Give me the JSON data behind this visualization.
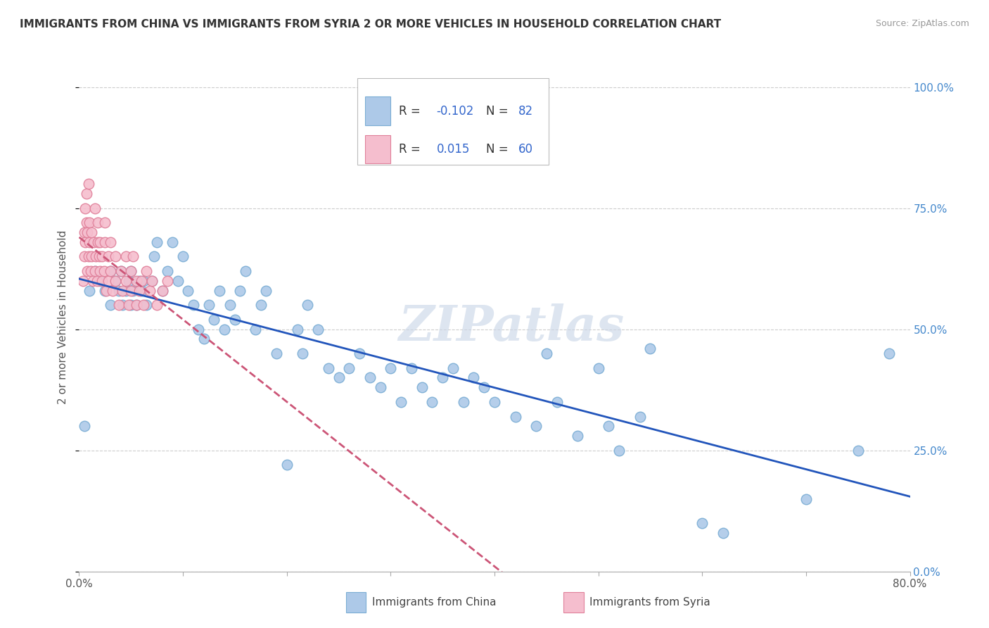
{
  "title": "IMMIGRANTS FROM CHINA VS IMMIGRANTS FROM SYRIA 2 OR MORE VEHICLES IN HOUSEHOLD CORRELATION CHART",
  "source": "Source: ZipAtlas.com",
  "ylabel": "2 or more Vehicles in Household",
  "china_R": -0.102,
  "china_N": 82,
  "syria_R": 0.015,
  "syria_N": 60,
  "china_color": "#adc9e8",
  "china_edge": "#7aadd4",
  "syria_color": "#f5bece",
  "syria_edge": "#e0809a",
  "china_line_color": "#2255bb",
  "syria_line_color": "#cc5577",
  "background_color": "#ffffff",
  "xlim": [
    0.0,
    0.8
  ],
  "ylim": [
    0.0,
    1.05
  ],
  "yticks": [
    0.0,
    0.25,
    0.5,
    0.75,
    1.0
  ],
  "yticklabels": [
    "0.0%",
    "25.0%",
    "50.0%",
    "75.0%",
    "100.0%"
  ],
  "xticks": [
    0.0,
    0.1,
    0.2,
    0.3,
    0.4,
    0.5,
    0.6,
    0.7,
    0.8
  ],
  "xticklabels": [
    "0.0%",
    "",
    "",
    "",
    "",
    "",
    "",
    "",
    "80.0%"
  ],
  "watermark": "ZIPatlas",
  "china_x": [
    0.005,
    0.01,
    0.015,
    0.02,
    0.025,
    0.03,
    0.03,
    0.035,
    0.038,
    0.04,
    0.042,
    0.045,
    0.048,
    0.05,
    0.05,
    0.052,
    0.055,
    0.058,
    0.06,
    0.062,
    0.065,
    0.07,
    0.072,
    0.075,
    0.08,
    0.085,
    0.09,
    0.095,
    0.1,
    0.105,
    0.11,
    0.115,
    0.12,
    0.125,
    0.13,
    0.135,
    0.14,
    0.145,
    0.15,
    0.155,
    0.16,
    0.17,
    0.175,
    0.18,
    0.19,
    0.2,
    0.21,
    0.215,
    0.22,
    0.23,
    0.24,
    0.25,
    0.26,
    0.27,
    0.28,
    0.29,
    0.3,
    0.31,
    0.32,
    0.33,
    0.34,
    0.35,
    0.36,
    0.37,
    0.38,
    0.39,
    0.4,
    0.42,
    0.44,
    0.45,
    0.46,
    0.48,
    0.5,
    0.51,
    0.52,
    0.54,
    0.55,
    0.6,
    0.62,
    0.7,
    0.75,
    0.78
  ],
  "china_y": [
    0.3,
    0.58,
    0.62,
    0.6,
    0.58,
    0.55,
    0.62,
    0.6,
    0.58,
    0.62,
    0.55,
    0.58,
    0.6,
    0.55,
    0.62,
    0.58,
    0.55,
    0.6,
    0.58,
    0.6,
    0.55,
    0.6,
    0.65,
    0.68,
    0.58,
    0.62,
    0.68,
    0.6,
    0.65,
    0.58,
    0.55,
    0.5,
    0.48,
    0.55,
    0.52,
    0.58,
    0.5,
    0.55,
    0.52,
    0.58,
    0.62,
    0.5,
    0.55,
    0.58,
    0.45,
    0.22,
    0.5,
    0.45,
    0.55,
    0.5,
    0.42,
    0.4,
    0.42,
    0.45,
    0.4,
    0.38,
    0.42,
    0.35,
    0.42,
    0.38,
    0.35,
    0.4,
    0.42,
    0.35,
    0.4,
    0.38,
    0.35,
    0.32,
    0.3,
    0.45,
    0.35,
    0.28,
    0.42,
    0.3,
    0.25,
    0.32,
    0.46,
    0.1,
    0.08,
    0.15,
    0.25,
    0.45
  ],
  "syria_x": [
    0.004,
    0.005,
    0.005,
    0.006,
    0.006,
    0.007,
    0.007,
    0.008,
    0.008,
    0.009,
    0.009,
    0.01,
    0.01,
    0.011,
    0.012,
    0.012,
    0.013,
    0.014,
    0.015,
    0.015,
    0.016,
    0.017,
    0.018,
    0.018,
    0.019,
    0.02,
    0.02,
    0.022,
    0.022,
    0.024,
    0.025,
    0.025,
    0.026,
    0.028,
    0.028,
    0.03,
    0.03,
    0.032,
    0.035,
    0.035,
    0.038,
    0.04,
    0.042,
    0.045,
    0.045,
    0.048,
    0.05,
    0.05,
    0.052,
    0.055,
    0.055,
    0.058,
    0.06,
    0.062,
    0.065,
    0.068,
    0.07,
    0.075,
    0.08,
    0.085
  ],
  "syria_y": [
    0.6,
    0.65,
    0.7,
    0.68,
    0.75,
    0.72,
    0.78,
    0.62,
    0.7,
    0.65,
    0.8,
    0.68,
    0.72,
    0.62,
    0.7,
    0.65,
    0.6,
    0.68,
    0.75,
    0.62,
    0.65,
    0.6,
    0.68,
    0.72,
    0.65,
    0.62,
    0.68,
    0.6,
    0.65,
    0.62,
    0.68,
    0.72,
    0.58,
    0.65,
    0.6,
    0.62,
    0.68,
    0.58,
    0.65,
    0.6,
    0.55,
    0.62,
    0.58,
    0.65,
    0.6,
    0.55,
    0.62,
    0.58,
    0.65,
    0.6,
    0.55,
    0.58,
    0.6,
    0.55,
    0.62,
    0.58,
    0.6,
    0.55,
    0.58,
    0.6
  ]
}
